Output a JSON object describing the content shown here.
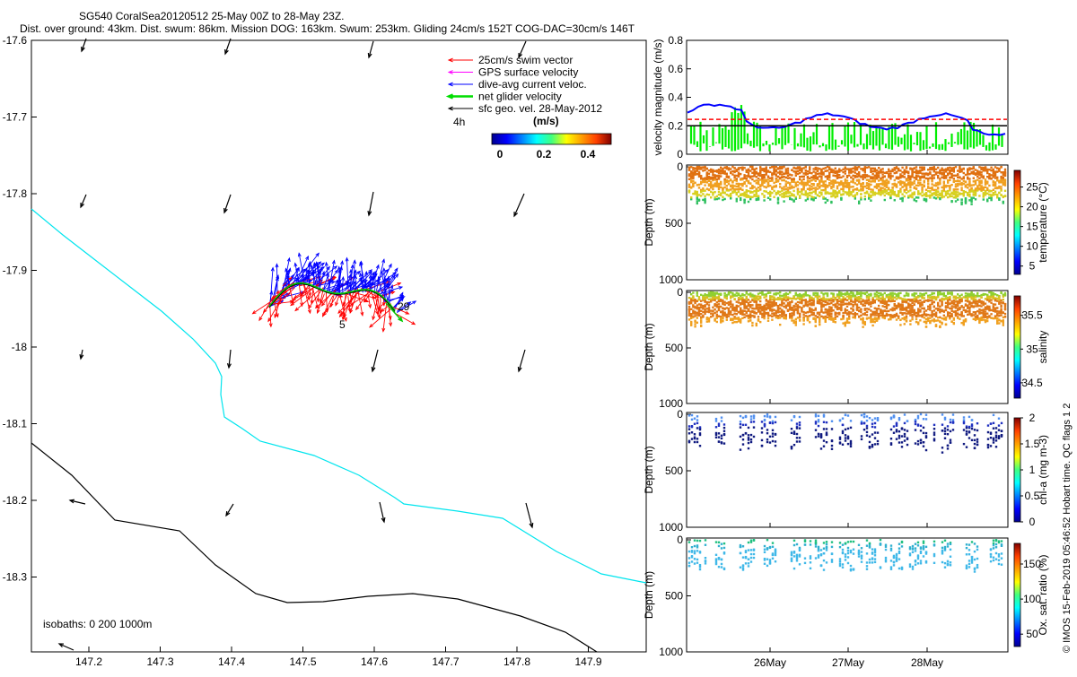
{
  "header": {
    "title_line1": "SG540 CoralSea20120512 25-May 00Z to 28-May 23Z.",
    "title_line2": "Dist. over ground: 43km. Dist. swum: 86km. Mission DOG: 163km. Swum: 253km. Gliding 24cm/s 152T COG-DAC=30cm/s 146T"
  },
  "credit": "© IMOS 15-Feb-2019 05:46:52 Hobart time. QC flags 1 2",
  "map": {
    "xticks": [
      "147.2",
      "147.3",
      "147.4",
      "147.5",
      "147.6",
      "147.7",
      "147.8",
      "147.9"
    ],
    "yticks": [
      "-17.6",
      "-17.7",
      "-17.8",
      "-17.9",
      "-18",
      "-18.1",
      "-18.2",
      "-18.3"
    ],
    "legend": [
      {
        "label": "25cm/s swim vector",
        "color": "#ff0000"
      },
      {
        "label": "GPS surface velocity",
        "color": "#ff00ff"
      },
      {
        "label": "dive-avg current veloc.",
        "color": "#0000ff"
      },
      {
        "label": "net glider velocity",
        "color": "#00dd00"
      },
      {
        "label": "sfc geo. vel. 28-May-2012",
        "color": "#000000"
      }
    ],
    "legend_4h": "4h",
    "cbar_label": "(m/s)",
    "cbar_ticks": [
      "0",
      "0.2",
      "0.4"
    ],
    "annotation_29": "29",
    "annotation_5": "5",
    "isobaths": "isobaths: 0   200  1000m",
    "colors": {
      "isobath_0": "#00e5ee",
      "isobath_200": "#000000"
    }
  },
  "chart_data": [
    {
      "type": "line",
      "name": "velocity",
      "ylabel": "velocity magnitude (m/s)",
      "yticks": [
        "0",
        "0.2",
        "0.4",
        "0.6",
        "0.8"
      ],
      "ylim": [
        0,
        0.8
      ]
    },
    {
      "type": "scatter",
      "name": "temperature",
      "ylabel": "Depth (m)",
      "yticks": [
        "0",
        "500",
        "1000"
      ],
      "cbar_label": "temperature (°C)",
      "cbar_ticks": [
        "5",
        "10",
        "15",
        "20",
        "25"
      ]
    },
    {
      "type": "scatter",
      "name": "salinity",
      "ylabel": "Depth (m)",
      "yticks": [
        "0",
        "500",
        "1000"
      ],
      "cbar_label": "salinity",
      "cbar_ticks": [
        "34.5",
        "35",
        "35.5"
      ]
    },
    {
      "type": "scatter",
      "name": "chl-a",
      "ylabel": "Depth (m)",
      "yticks": [
        "0",
        "500",
        "1000"
      ],
      "cbar_label": "chl-a (mg m-3)",
      "cbar_ticks": [
        "0",
        "0.5",
        "1",
        "1.5",
        "2"
      ]
    },
    {
      "type": "scatter",
      "name": "oxygen",
      "ylabel": "Depth (m)",
      "yticks": [
        "0",
        "500",
        "1000"
      ],
      "cbar_label": "Ox. sat. ratio (%)",
      "cbar_ticks": [
        "50",
        "100",
        "150"
      ]
    }
  ],
  "time_axis": [
    "26May",
    "27May",
    "28May"
  ]
}
